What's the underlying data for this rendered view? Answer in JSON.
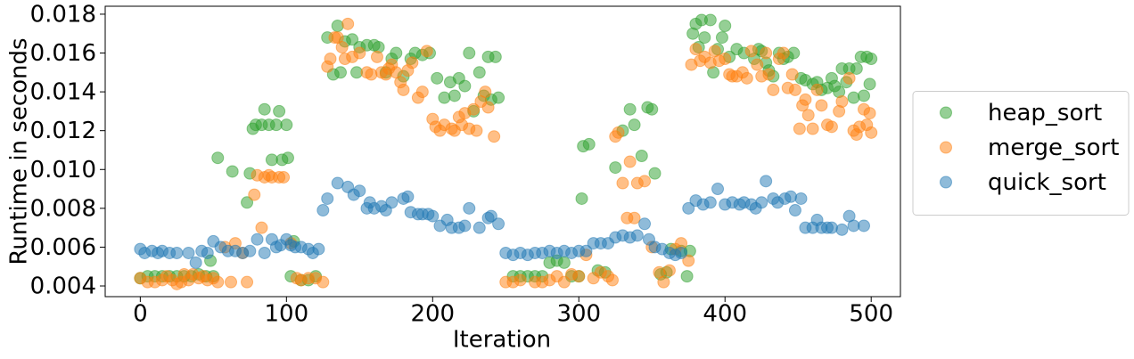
{
  "chart_data": {
    "type": "scatter",
    "x_label": "Iteration",
    "y_label": "Runtime in seconds",
    "xlim": [
      -24,
      520
    ],
    "ylim": [
      0.00345,
      0.01841
    ],
    "xticks": [
      0,
      100,
      200,
      300,
      400,
      500
    ],
    "yticks": [
      0.004,
      0.006,
      0.008,
      {
        "value": 0.01,
        "label": "0.010"
      },
      0.012,
      0.014,
      0.016,
      0.018
    ],
    "legend_loc": "right",
    "marker_opacity": 0.5,
    "series": [
      {
        "name": "heap_sort",
        "color": "#2ca02c",
        "x": [
          0,
          5,
          10,
          15,
          20,
          25,
          30,
          35,
          40,
          45,
          48,
          50,
          53,
          63,
          73,
          75,
          77,
          79,
          83,
          85,
          88,
          90,
          93,
          95,
          97,
          100,
          101,
          103,
          105,
          110,
          115,
          120,
          128,
          132,
          135,
          137,
          140,
          145,
          148,
          150,
          155,
          160,
          163,
          168,
          172,
          175,
          180,
          185,
          188,
          193,
          198,
          203,
          208,
          212,
          215,
          218,
          222,
          225,
          228,
          232,
          235,
          238,
          240,
          243,
          245,
          255,
          260,
          265,
          270,
          275,
          280,
          285,
          290,
          295,
          300,
          302,
          303,
          307,
          313,
          318,
          325,
          330,
          335,
          338,
          343,
          347,
          350,
          352,
          356,
          360,
          363,
          370,
          374,
          376,
          378,
          380,
          382,
          384,
          386,
          390,
          392,
          395,
          398,
          400,
          403,
          408,
          413,
          420,
          423,
          425,
          428,
          430,
          433,
          437,
          440,
          443,
          447,
          452,
          455,
          460,
          463,
          466,
          470,
          473,
          475,
          478,
          480,
          483,
          485,
          488,
          490,
          493,
          495,
          497,
          499,
          500
        ],
        "values": [
          0.0044,
          0.0045,
          0.0045,
          0.0045,
          0.0045,
          0.0045,
          0.0045,
          0.0045,
          0.0046,
          0.0045,
          0.0053,
          0.0045,
          0.0106,
          0.0099,
          0.0083,
          0.0098,
          0.0121,
          0.0123,
          0.0123,
          0.0131,
          0.0123,
          0.0105,
          0.0123,
          0.013,
          0.0105,
          0.0123,
          0.0106,
          0.0045,
          0.0063,
          0.0043,
          0.0043,
          0.0045,
          0.0168,
          0.0149,
          0.0174,
          0.015,
          0.0166,
          0.0167,
          0.015,
          0.0163,
          0.0164,
          0.0164,
          0.0163,
          0.015,
          0.0157,
          0.016,
          0.0148,
          0.0157,
          0.016,
          0.0159,
          0.016,
          0.0147,
          0.0137,
          0.0145,
          0.0138,
          0.0147,
          0.0143,
          0.016,
          0.013,
          0.015,
          0.0138,
          0.0158,
          0.0136,
          0.0158,
          0.0137,
          0.0045,
          0.0045,
          0.0045,
          0.0045,
          0.0045,
          0.0052,
          0.0053,
          0.0052,
          0.0045,
          0.0045,
          0.0085,
          0.0112,
          0.0113,
          0.0048,
          0.0047,
          0.0101,
          0.012,
          0.0131,
          0.0123,
          0.0107,
          0.0132,
          0.0131,
          0.0098,
          0.0046,
          0.0047,
          0.0059,
          0.0058,
          0.0045,
          0.0058,
          0.017,
          0.0175,
          0.0163,
          0.0177,
          0.0168,
          0.0177,
          0.015,
          0.0162,
          0.0168,
          0.0174,
          0.0158,
          0.0162,
          0.016,
          0.0157,
          0.0162,
          0.0161,
          0.0155,
          0.0151,
          0.0148,
          0.016,
          0.0157,
          0.0158,
          0.016,
          0.0147,
          0.0146,
          0.0144,
          0.0145,
          0.0141,
          0.0142,
          0.0147,
          0.0143,
          0.014,
          0.0152,
          0.0145,
          0.0152,
          0.0137,
          0.0152,
          0.0158,
          0.0138,
          0.0158,
          0.0144,
          0.0157
        ]
      },
      {
        "name": "merge_sort",
        "color": "#ff7f0e",
        "x": [
          0,
          5,
          10,
          15,
          18,
          22,
          25,
          28,
          30,
          33,
          36,
          40,
          43,
          46,
          50,
          53,
          58,
          62,
          65,
          70,
          73,
          78,
          80,
          83,
          85,
          88,
          90,
          95,
          98,
          103,
          107,
          110,
          115,
          120,
          125,
          128,
          130,
          133,
          135,
          138,
          140,
          142,
          145,
          150,
          155,
          158,
          162,
          165,
          168,
          170,
          172,
          175,
          178,
          180,
          183,
          186,
          190,
          193,
          196,
          200,
          202,
          205,
          208,
          213,
          215,
          218,
          220,
          222,
          225,
          228,
          230,
          233,
          236,
          238,
          242,
          250,
          255,
          260,
          270,
          275,
          280,
          285,
          290,
          295,
          300,
          305,
          310,
          315,
          320,
          323,
          325,
          327,
          330,
          333,
          335,
          338,
          340,
          345,
          350,
          355,
          358,
          362,
          366,
          370,
          375,
          377,
          380,
          383,
          386,
          390,
          393,
          396,
          400,
          403,
          405,
          408,
          412,
          415,
          418,
          422,
          425,
          428,
          430,
          433,
          437,
          440,
          443,
          446,
          448,
          451,
          453,
          455,
          457,
          460,
          463,
          466,
          470,
          473,
          478,
          480,
          485,
          488,
          490,
          492,
          495,
          497,
          499,
          500
        ],
        "values": [
          0.0044,
          0.0042,
          0.0042,
          0.0043,
          0.0045,
          0.0043,
          0.0041,
          0.0042,
          0.0046,
          0.0043,
          0.0046,
          0.0044,
          0.0045,
          0.0043,
          0.0044,
          0.0042,
          0.006,
          0.0042,
          0.0062,
          0.0057,
          0.0042,
          0.0087,
          0.0097,
          0.007,
          0.0096,
          0.0097,
          0.0096,
          0.0096,
          0.0096,
          0.0062,
          0.0044,
          0.0043,
          0.0044,
          0.0044,
          0.0042,
          0.0153,
          0.0157,
          0.0168,
          0.0168,
          0.0163,
          0.0157,
          0.0175,
          0.0158,
          0.016,
          0.015,
          0.0149,
          0.0158,
          0.015,
          0.0149,
          0.0152,
          0.0154,
          0.015,
          0.0145,
          0.0141,
          0.0151,
          0.0155,
          0.0137,
          0.014,
          0.0161,
          0.0126,
          0.0122,
          0.012,
          0.0123,
          0.0121,
          0.012,
          0.0127,
          0.0123,
          0.0129,
          0.0121,
          0.0131,
          0.012,
          0.0135,
          0.014,
          0.0132,
          0.0117,
          0.0042,
          0.0042,
          0.0043,
          0.0042,
          0.0042,
          0.0043,
          0.0045,
          0.0042,
          0.0046,
          0.0045,
          0.0056,
          0.0044,
          0.0047,
          0.0045,
          0.0043,
          0.0117,
          0.0119,
          0.0093,
          0.0075,
          0.0104,
          0.0075,
          0.0093,
          0.0094,
          0.006,
          0.0047,
          0.0042,
          0.0048,
          0.0059,
          0.0062,
          0.0053,
          0.0154,
          0.0162,
          0.0156,
          0.0158,
          0.0155,
          0.0161,
          0.0156,
          0.0157,
          0.0149,
          0.0148,
          0.0148,
          0.015,
          0.0147,
          0.0161,
          0.0154,
          0.0148,
          0.016,
          0.0149,
          0.0141,
          0.0157,
          0.016,
          0.0142,
          0.0149,
          0.0141,
          0.0121,
          0.0133,
          0.0136,
          0.0128,
          0.0121,
          0.0141,
          0.0133,
          0.0123,
          0.0122,
          0.013,
          0.0135,
          0.0147,
          0.012,
          0.0118,
          0.0122,
          0.0131,
          0.0123,
          0.0129,
          0.0119
        ]
      },
      {
        "name": "quick_sort",
        "color": "#1f77b4",
        "x": [
          0,
          3,
          8,
          12,
          15,
          20,
          25,
          33,
          38,
          42,
          46,
          50,
          55,
          60,
          65,
          70,
          75,
          80,
          85,
          90,
          93,
          96,
          100,
          103,
          106,
          110,
          115,
          118,
          122,
          125,
          128,
          135,
          142,
          146,
          150,
          155,
          157,
          160,
          165,
          168,
          172,
          180,
          183,
          185,
          190,
          193,
          197,
          200,
          205,
          210,
          213,
          218,
          222,
          225,
          232,
          238,
          240,
          245,
          250,
          255,
          260,
          265,
          270,
          275,
          280,
          285,
          290,
          295,
          300,
          305,
          310,
          315,
          320,
          325,
          330,
          335,
          340,
          345,
          348,
          352,
          357,
          362,
          366,
          370,
          375,
          380,
          385,
          390,
          395,
          400,
          405,
          410,
          413,
          418,
          421,
          425,
          428,
          433,
          436,
          441,
          445,
          448,
          452,
          455,
          460,
          463,
          466,
          470,
          473,
          480,
          485,
          488,
          495
        ],
        "values": [
          0.0059,
          0.0057,
          0.0058,
          0.0057,
          0.0058,
          0.0057,
          0.0057,
          0.0057,
          0.0052,
          0.0058,
          0.0057,
          0.0063,
          0.006,
          0.0058,
          0.0058,
          0.0057,
          0.0058,
          0.0064,
          0.0057,
          0.0064,
          0.006,
          0.0061,
          0.0064,
          0.0061,
          0.006,
          0.006,
          0.0059,
          0.0057,
          0.0059,
          0.0079,
          0.0085,
          0.0093,
          0.0091,
          0.0087,
          0.0089,
          0.008,
          0.0083,
          0.008,
          0.0081,
          0.0079,
          0.0083,
          0.0085,
          0.0086,
          0.0078,
          0.0077,
          0.0077,
          0.0077,
          0.0076,
          0.0071,
          0.0074,
          0.007,
          0.007,
          0.0071,
          0.008,
          0.007,
          0.0075,
          0.0076,
          0.0072,
          0.0057,
          0.0056,
          0.0057,
          0.0056,
          0.0057,
          0.0057,
          0.0058,
          0.0057,
          0.0058,
          0.0057,
          0.0058,
          0.0058,
          0.0062,
          0.0062,
          0.0062,
          0.0065,
          0.0066,
          0.0065,
          0.0066,
          0.0072,
          0.0064,
          0.006,
          0.0059,
          0.0057,
          0.0056,
          0.0057,
          0.008,
          0.0084,
          0.0082,
          0.0083,
          0.009,
          0.0082,
          0.0083,
          0.0082,
          0.0083,
          0.0082,
          0.008,
          0.0083,
          0.0094,
          0.0085,
          0.0083,
          0.0085,
          0.0086,
          0.0079,
          0.0085,
          0.007,
          0.007,
          0.0074,
          0.007,
          0.007,
          0.007,
          0.0069,
          0.0076,
          0.0071,
          0.0071
        ]
      }
    ]
  }
}
